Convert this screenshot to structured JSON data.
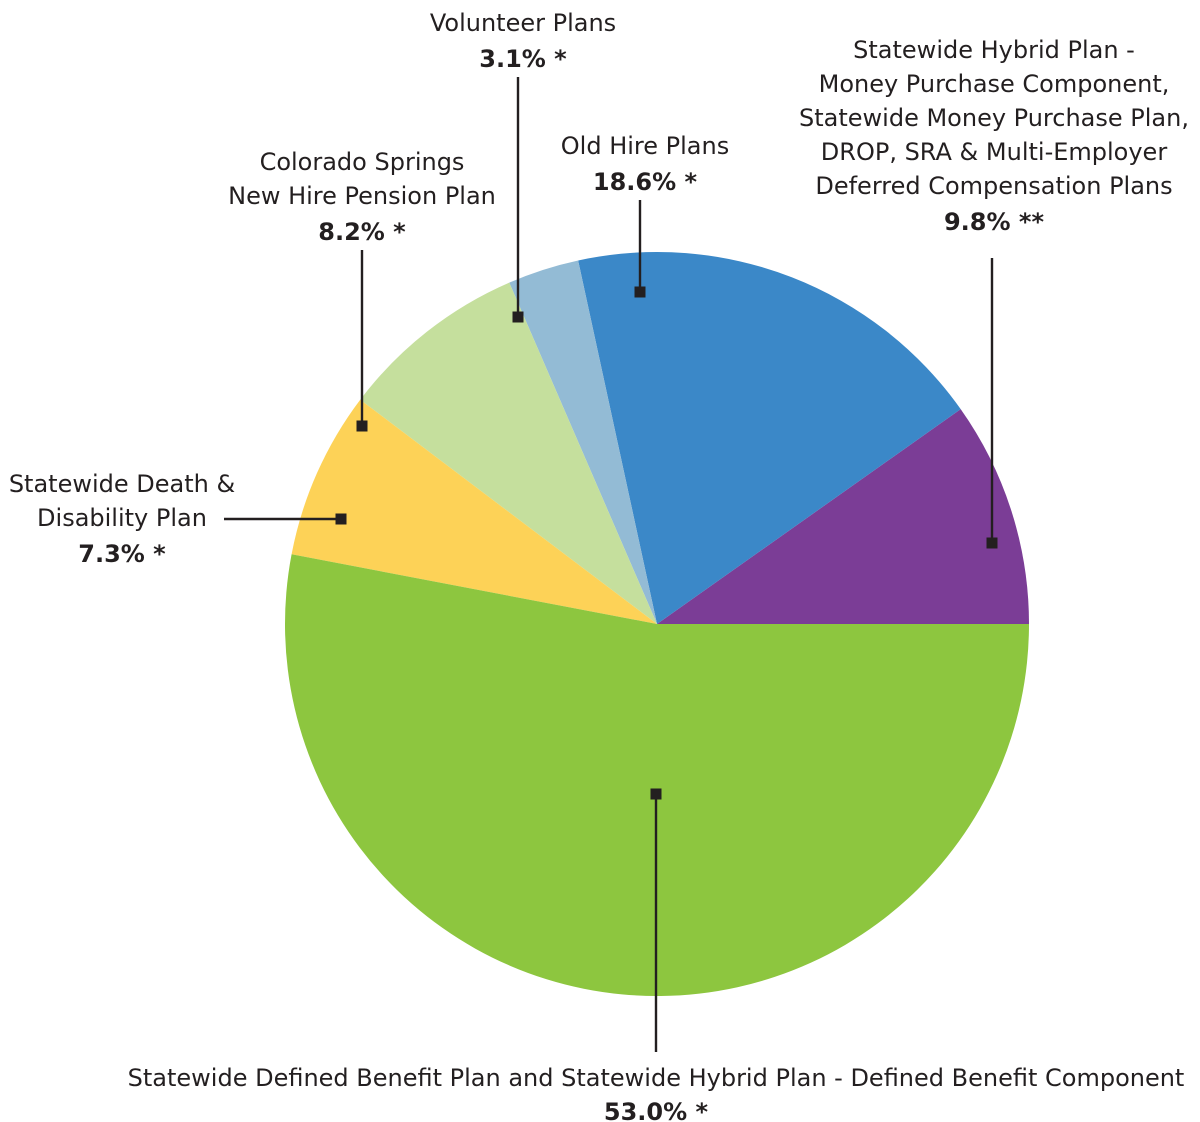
{
  "chart_data": {
    "type": "pie",
    "title": "",
    "slices": [
      {
        "lines": [
          "Statewide Hybrid Plan -",
          "Money Purchase Component,",
          "Statewide Money Purchase Plan,",
          "DROP, SRA & Multi-Employer",
          "Deferred Compensation Plans"
        ],
        "value": 9.8,
        "value_label": "9.8% **",
        "color": "#7b3d96"
      },
      {
        "lines": [
          "Old Hire Plans"
        ],
        "value": 18.6,
        "value_label": "18.6% *",
        "color": "#3b88c8"
      },
      {
        "lines": [
          "Volunteer Plans"
        ],
        "value": 3.1,
        "value_label": "3.1% *",
        "color": "#93bbd5"
      },
      {
        "lines": [
          "Colorado Springs",
          "New Hire Pension Plan"
        ],
        "value": 8.2,
        "value_label": "8.2% *",
        "color": "#c5df9d"
      },
      {
        "lines": [
          "Statewide Death &",
          "Disability Plan"
        ],
        "value": 7.3,
        "value_label": "7.3% *",
        "color": "#fdd257"
      },
      {
        "lines": [
          "Statewide Defined Benefit Plan and Statewide Hybrid Plan - Defined Benefit Component"
        ],
        "value": 53.0,
        "value_label": "53.0% *",
        "color": "#8dc63f"
      }
    ]
  }
}
